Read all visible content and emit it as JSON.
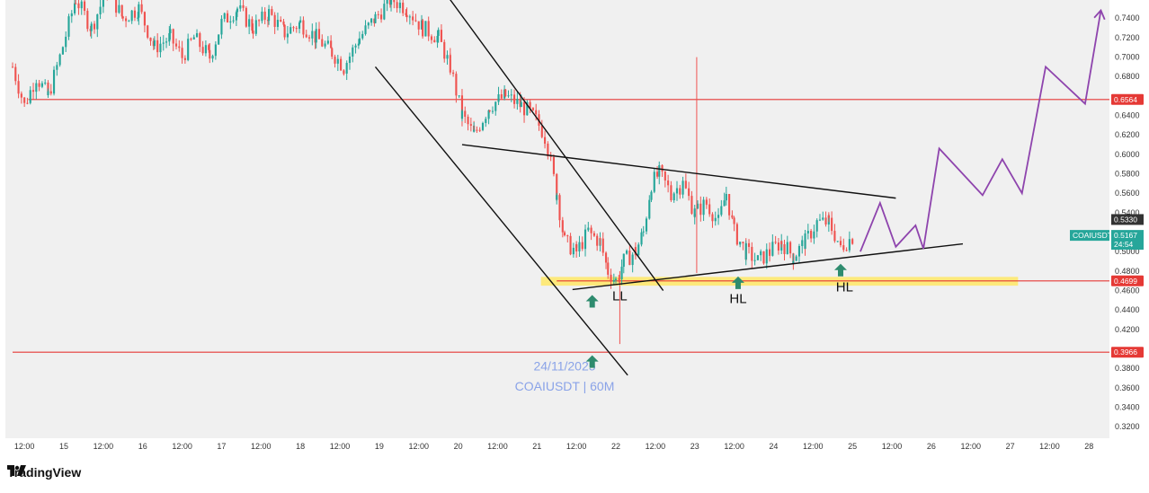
{
  "chart_data": {
    "type": "candlestick",
    "symbol_label": "COAIUSDT",
    "watermark_date": "24/11/2025",
    "watermark_symbol": "COAIUSDT | 60M",
    "ylim": [
      0.31,
      0.755
    ],
    "y_ticks": [
      "0.7400",
      "0.7200",
      "0.7000",
      "0.6800",
      "0.6400",
      "0.6200",
      "0.6000",
      "0.5800",
      "0.5600",
      "0.5400",
      "0.5000",
      "0.4800",
      "0.4600",
      "0.4400",
      "0.4200",
      "0.3800",
      "0.3600",
      "0.3400",
      "0.3200"
    ],
    "x_ticks": [
      "12:00",
      "15",
      "12:00",
      "16",
      "12:00",
      "17",
      "12:00",
      "18",
      "12:00",
      "19",
      "12:00",
      "20",
      "12:00",
      "21",
      "12:00",
      "22",
      "12:00",
      "23",
      "12:00",
      "24",
      "12:00",
      "25",
      "12:00",
      "26",
      "12:00",
      "27",
      "12:00",
      "28"
    ],
    "x_range": [
      0,
      28
    ],
    "candle_x_range": [
      0,
      21.3
    ],
    "price_path": [
      [
        0.0,
        0.69
      ],
      [
        0.3,
        0.65
      ],
      [
        0.6,
        0.68
      ],
      [
        0.9,
        0.66
      ],
      [
        1.2,
        0.7
      ],
      [
        1.6,
        0.76
      ],
      [
        2.0,
        0.73
      ],
      [
        2.4,
        0.77
      ],
      [
        2.8,
        0.74
      ],
      [
        3.2,
        0.75
      ],
      [
        3.6,
        0.71
      ],
      [
        4.0,
        0.72
      ],
      [
        4.3,
        0.7
      ],
      [
        4.6,
        0.72
      ],
      [
        5.0,
        0.7
      ],
      [
        5.3,
        0.735
      ],
      [
        5.7,
        0.75
      ],
      [
        6.1,
        0.73
      ],
      [
        6.5,
        0.745
      ],
      [
        6.9,
        0.725
      ],
      [
        7.3,
        0.735
      ],
      [
        7.7,
        0.72
      ],
      [
        8.1,
        0.705
      ],
      [
        8.4,
        0.69
      ],
      [
        8.8,
        0.72
      ],
      [
        9.2,
        0.74
      ],
      [
        9.6,
        0.76
      ],
      [
        10.0,
        0.75
      ],
      [
        10.4,
        0.73
      ],
      [
        10.8,
        0.72
      ],
      [
        11.1,
        0.69
      ],
      [
        11.4,
        0.64
      ],
      [
        11.7,
        0.62
      ],
      [
        12.1,
        0.65
      ],
      [
        12.5,
        0.66
      ],
      [
        12.9,
        0.65
      ],
      [
        13.2,
        0.64
      ],
      [
        13.5,
        0.62
      ],
      [
        13.8,
        0.56
      ],
      [
        14.0,
        0.51
      ],
      [
        14.3,
        0.5
      ],
      [
        14.6,
        0.52
      ],
      [
        14.9,
        0.51
      ],
      [
        15.1,
        0.48
      ],
      [
        15.3,
        0.47
      ],
      [
        15.5,
        0.49
      ],
      [
        15.8,
        0.5
      ],
      [
        16.0,
        0.52
      ],
      [
        16.2,
        0.57
      ],
      [
        16.4,
        0.58
      ],
      [
        16.7,
        0.56
      ],
      [
        17.0,
        0.57
      ],
      [
        17.3,
        0.54
      ],
      [
        17.6,
        0.55
      ],
      [
        17.9,
        0.53
      ],
      [
        18.1,
        0.56
      ],
      [
        18.3,
        0.52
      ],
      [
        18.6,
        0.5
      ],
      [
        18.9,
        0.49
      ],
      [
        19.2,
        0.5
      ],
      [
        19.5,
        0.51
      ],
      [
        19.8,
        0.495
      ],
      [
        20.1,
        0.51
      ],
      [
        20.4,
        0.53
      ],
      [
        20.7,
        0.53
      ],
      [
        21.0,
        0.505
      ],
      [
        21.3,
        0.515
      ]
    ],
    "wicks": [
      {
        "x": 17.35,
        "low": 0.478,
        "high": 0.7
      },
      {
        "x": 15.4,
        "low": 0.405,
        "high": 0.48
      }
    ],
    "horizontal_levels": [
      {
        "value": 0.6564,
        "label": "0.6564",
        "color": "#e53935",
        "x_start": 0.4
      },
      {
        "value": 0.4699,
        "label": "0.4699",
        "color": "#e53935",
        "x_start": 13.8
      },
      {
        "value": 0.3966,
        "label": "0.3966",
        "color": "#e53935",
        "x_start": 0.0
      }
    ],
    "support_zone": {
      "low": 0.465,
      "high": 0.474,
      "x_start": 13.4,
      "x_end": 25.5,
      "color": "#ffe866"
    },
    "trendlines": [
      {
        "x1": 9.2,
        "y1": 0.69,
        "x2": 15.6,
        "y2": 0.373
      },
      {
        "x1": 10.9,
        "y1": 0.77,
        "x2": 16.5,
        "y2": 0.46
      },
      {
        "x1": 11.4,
        "y1": 0.61,
        "x2": 22.4,
        "y2": 0.555
      },
      {
        "x1": 14.2,
        "y1": 0.461,
        "x2": 24.1,
        "y2": 0.508
      }
    ],
    "projection": [
      [
        21.5,
        0.5
      ],
      [
        22.0,
        0.55
      ],
      [
        22.4,
        0.505
      ],
      [
        22.9,
        0.527
      ],
      [
        23.1,
        0.503
      ],
      [
        23.5,
        0.606
      ],
      [
        24.6,
        0.558
      ],
      [
        25.1,
        0.595
      ],
      [
        25.6,
        0.56
      ],
      [
        26.2,
        0.69
      ],
      [
        27.2,
        0.652
      ],
      [
        27.6,
        0.748
      ]
    ],
    "projection_color": "#8e44ad",
    "arrow_markers": [
      {
        "x": 14.7,
        "value": 0.449
      },
      {
        "x": 14.7,
        "value": 0.387
      },
      {
        "x": 18.4,
        "value": 0.468
      },
      {
        "x": 21.0,
        "value": 0.481
      }
    ],
    "annotations": [
      {
        "text": "LL",
        "x": 15.4,
        "value": 0.45
      },
      {
        "text": "HL",
        "x": 18.4,
        "value": 0.447
      },
      {
        "text": "HL",
        "x": 21.1,
        "value": 0.459
      }
    ],
    "price_tags": [
      {
        "label": "0.5330",
        "value": 0.533,
        "bg": "#333333"
      },
      {
        "label": "COAIUSDT",
        "value": 0.5167,
        "bg": "#26a69a"
      },
      {
        "label": "0.5167",
        "value": 0.5167,
        "bg": "#26a69a"
      },
      {
        "label": "24:54",
        "value": 0.5075,
        "bg": "#26a69a"
      }
    ],
    "colors": {
      "up": "#26a69a",
      "down": "#ef5350"
    }
  },
  "footer": {
    "brand": "TradingView"
  }
}
